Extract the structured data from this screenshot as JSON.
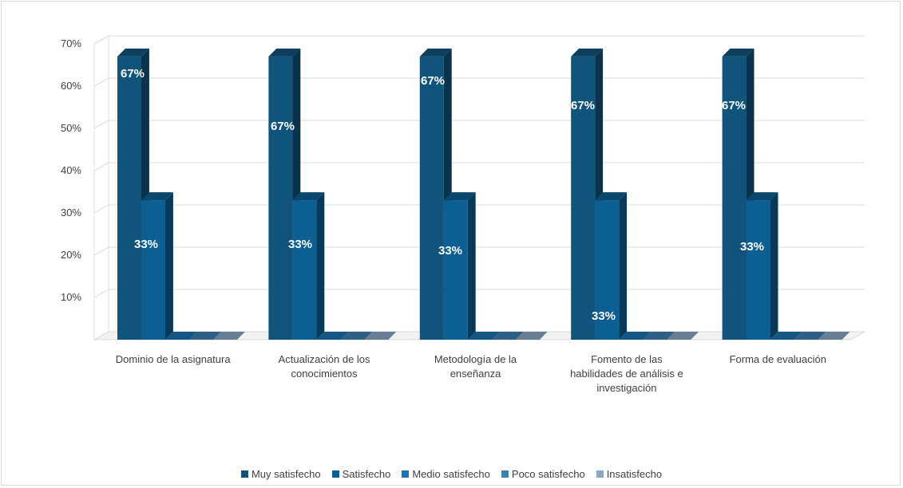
{
  "chart_data": {
    "type": "bar",
    "categories": [
      [
        "Dominio de la asignatura"
      ],
      [
        "Actualización de los",
        "conocimientos"
      ],
      [
        "Metodología de la",
        "enseñanza"
      ],
      [
        "Fomento de las",
        "habilidades de análisis e",
        "investigación"
      ],
      [
        "Forma de evaluación"
      ]
    ],
    "series": [
      {
        "name": "Muy satisfecho",
        "color": "#10547c",
        "values": [
          67,
          67,
          67,
          67,
          67
        ]
      },
      {
        "name": "Satisfecho",
        "color": "#0b5f92",
        "values": [
          33,
          33,
          33,
          33,
          33
        ]
      },
      {
        "name": "Medio satisfecho",
        "color": "#1b74b1",
        "values": [
          0,
          0,
          0,
          0,
          0
        ]
      },
      {
        "name": "Poco satisfecho",
        "color": "#3f7fb0",
        "values": [
          0,
          0,
          0,
          0,
          0
        ]
      },
      {
        "name": "Insatisfecho",
        "color": "#8aa8c6",
        "values": [
          0,
          0,
          0,
          0,
          0
        ]
      }
    ],
    "data_labels": [
      [
        "67%",
        "33%"
      ],
      [
        "67%",
        "33%"
      ],
      [
        "67%",
        "33%"
      ],
      [
        "67%",
        "33%"
      ],
      [
        "67%",
        "33%"
      ]
    ],
    "y_ticks": [
      "10%",
      "20%",
      "30%",
      "40%",
      "50%",
      "60%",
      "70%"
    ],
    "ylim": [
      0,
      70
    ],
    "grid": true,
    "legend_position": "bottom",
    "title": "",
    "xlabel": "",
    "ylabel": ""
  }
}
